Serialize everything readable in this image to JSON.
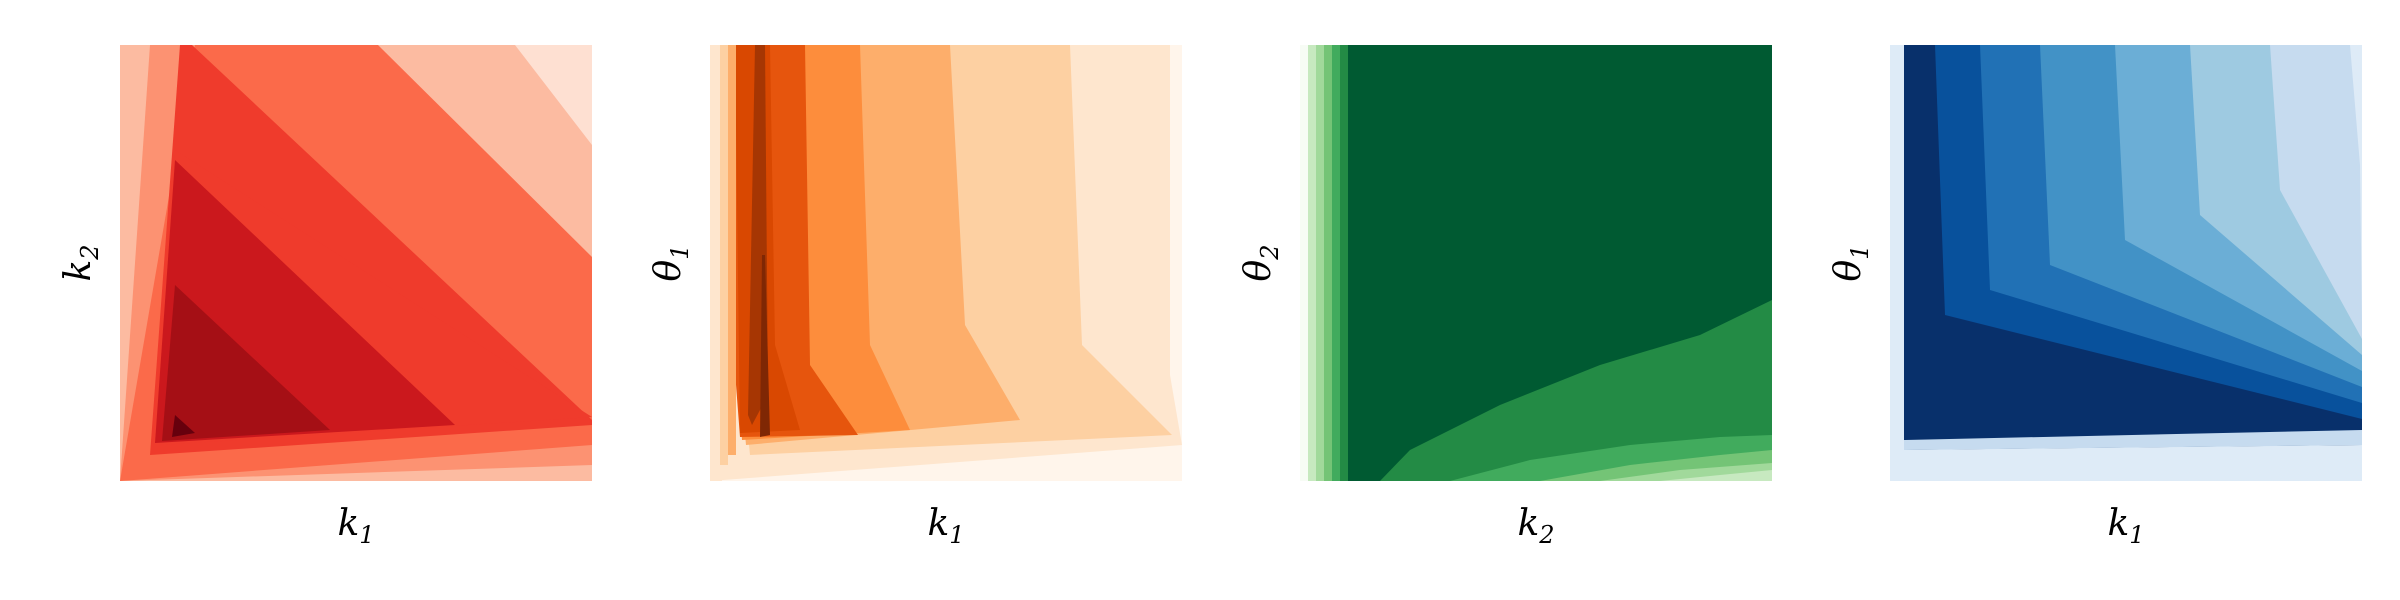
{
  "figure": {
    "background": "#ffffff"
  },
  "chart_data": [
    {
      "type": "heatmap",
      "subtype": "filled-contour",
      "title": "",
      "xlabel": "k",
      "xlabel_sub": "1",
      "ylabel": "k",
      "ylabel_sub": "2",
      "colormap": "Reds",
      "levels": [
        "#fee0d2",
        "#fcbba1",
        "#fc9272",
        "#fb6a4a",
        "#ef3b2c",
        "#cb181d",
        "#a50f15",
        "#67000d"
      ],
      "shape": "symmetric-wedge",
      "peak_location": "bottom-left",
      "grid": false,
      "ticks": false
    },
    {
      "type": "heatmap",
      "subtype": "filled-contour",
      "title": "",
      "xlabel": "k",
      "xlabel_sub": "1",
      "ylabel": "θ",
      "ylabel_sub": "1",
      "colormap": "Oranges",
      "levels": [
        "#fff5eb",
        "#fee6ce",
        "#fdd0a2",
        "#fdae6b",
        "#fd8d3c",
        "#f16913",
        "#e6550d",
        "#d94801",
        "#a63603",
        "#7f2704"
      ],
      "shape": "vertical-bands",
      "peak_location": "left",
      "grid": false,
      "ticks": false
    },
    {
      "type": "heatmap",
      "subtype": "filled-contour",
      "title": "",
      "xlabel": "k",
      "xlabel_sub": "2",
      "ylabel": "θ",
      "ylabel_sub": "2",
      "colormap": "Greens",
      "levels": [
        "#f7fcf5",
        "#e5f5e0",
        "#c7e9c0",
        "#a1d99b",
        "#74c476",
        "#41ab5d",
        "#238b45",
        "#006d2c",
        "#005a32"
      ],
      "shape": "plateau",
      "peak_location": "top",
      "grid": false,
      "ticks": false
    },
    {
      "type": "heatmap",
      "subtype": "filled-contour",
      "title": "",
      "xlabel": "k",
      "xlabel_sub": "1",
      "ylabel": "θ",
      "ylabel_sub": "1",
      "colormap": "Blues",
      "levels": [
        "#f7fbff",
        "#deebf7",
        "#c6dbef",
        "#9ecae1",
        "#6baed6",
        "#4292c6",
        "#2171b5",
        "#08519c",
        "#08306b"
      ],
      "shape": "hyperbolic",
      "peak_location": "bottom-left",
      "grid": false,
      "ticks": false
    }
  ]
}
